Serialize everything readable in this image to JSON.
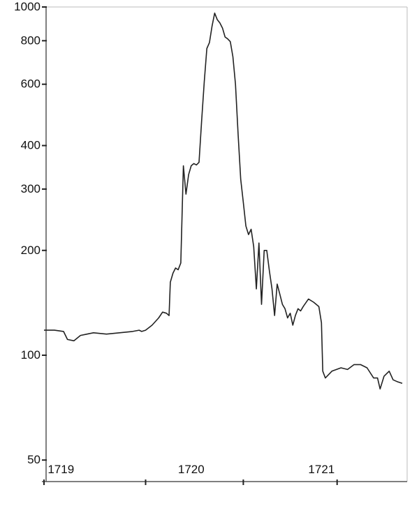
{
  "chart_data": {
    "type": "line",
    "title": "",
    "xlabel": "",
    "ylabel": "",
    "y_scale": "log",
    "ylim": [
      45,
      1000
    ],
    "xlim": [
      1718.97,
      1721.72
    ],
    "grid": false,
    "y_ticks": [
      {
        "value": 1000,
        "label": "1000"
      },
      {
        "value": 800,
        "label": "800"
      },
      {
        "value": 600,
        "label": "600"
      },
      {
        "value": 400,
        "label": "400"
      },
      {
        "value": 300,
        "label": "300"
      },
      {
        "value": 200,
        "label": "200"
      },
      {
        "value": 100,
        "label": "100"
      },
      {
        "value": 50,
        "label": "50"
      }
    ],
    "x_ticks": [
      {
        "value": 1719,
        "label": "1719"
      },
      {
        "value": 1720,
        "label": "1720"
      },
      {
        "value": 1721,
        "label": "1721"
      },
      {
        "value": 1722,
        "label": ""
      }
    ],
    "x_tick_marks": [
      1718.97,
      1719.75,
      1720.5,
      1721.22
    ],
    "series": [
      {
        "name": "",
        "color": "#222222",
        "points": [
          [
            1718.97,
            118
          ],
          [
            1719.05,
            118
          ],
          [
            1719.12,
            117
          ],
          [
            1719.15,
            111
          ],
          [
            1719.2,
            110
          ],
          [
            1719.25,
            114
          ],
          [
            1719.35,
            116
          ],
          [
            1719.45,
            115
          ],
          [
            1719.55,
            116
          ],
          [
            1719.65,
            117
          ],
          [
            1719.7,
            118
          ],
          [
            1719.72,
            117
          ],
          [
            1719.75,
            118
          ],
          [
            1719.8,
            122
          ],
          [
            1719.85,
            128
          ],
          [
            1719.88,
            133
          ],
          [
            1719.91,
            132
          ],
          [
            1719.93,
            130
          ],
          [
            1719.94,
            162
          ],
          [
            1719.96,
            172
          ],
          [
            1719.98,
            178
          ],
          [
            1720.0,
            176
          ],
          [
            1720.02,
            184
          ],
          [
            1720.04,
            350
          ],
          [
            1720.06,
            290
          ],
          [
            1720.08,
            330
          ],
          [
            1720.1,
            350
          ],
          [
            1720.12,
            355
          ],
          [
            1720.14,
            352
          ],
          [
            1720.16,
            358
          ],
          [
            1720.18,
            470
          ],
          [
            1720.2,
            610
          ],
          [
            1720.22,
            760
          ],
          [
            1720.24,
            790
          ],
          [
            1720.26,
            880
          ],
          [
            1720.28,
            960
          ],
          [
            1720.3,
            920
          ],
          [
            1720.32,
            900
          ],
          [
            1720.34,
            870
          ],
          [
            1720.36,
            820
          ],
          [
            1720.38,
            810
          ],
          [
            1720.4,
            795
          ],
          [
            1720.42,
            720
          ],
          [
            1720.44,
            600
          ],
          [
            1720.46,
            430
          ],
          [
            1720.48,
            320
          ],
          [
            1720.5,
            275
          ],
          [
            1720.52,
            235
          ],
          [
            1720.54,
            222
          ],
          [
            1720.56,
            230
          ],
          [
            1720.58,
            205
          ],
          [
            1720.6,
            155
          ],
          [
            1720.62,
            210
          ],
          [
            1720.64,
            140
          ],
          [
            1720.66,
            200
          ],
          [
            1720.68,
            200
          ],
          [
            1720.7,
            175
          ],
          [
            1720.72,
            155
          ],
          [
            1720.74,
            130
          ],
          [
            1720.76,
            160
          ],
          [
            1720.78,
            150
          ],
          [
            1720.8,
            140
          ],
          [
            1720.82,
            136
          ],
          [
            1720.84,
            128
          ],
          [
            1720.86,
            132
          ],
          [
            1720.88,
            122
          ],
          [
            1720.9,
            130
          ],
          [
            1720.92,
            136
          ],
          [
            1720.94,
            134
          ],
          [
            1720.96,
            138
          ],
          [
            1721.0,
            145
          ],
          [
            1721.04,
            142
          ],
          [
            1721.08,
            138
          ],
          [
            1721.1,
            124
          ],
          [
            1721.11,
            90
          ],
          [
            1721.13,
            86
          ],
          [
            1721.18,
            90
          ],
          [
            1721.25,
            92
          ],
          [
            1721.3,
            91
          ],
          [
            1721.35,
            94
          ],
          [
            1721.4,
            94
          ],
          [
            1721.45,
            92
          ],
          [
            1721.5,
            86
          ],
          [
            1721.53,
            86
          ],
          [
            1721.55,
            80
          ],
          [
            1721.58,
            87
          ],
          [
            1721.62,
            90
          ],
          [
            1721.65,
            85
          ],
          [
            1721.68,
            84
          ],
          [
            1721.72,
            83
          ]
        ]
      }
    ]
  }
}
